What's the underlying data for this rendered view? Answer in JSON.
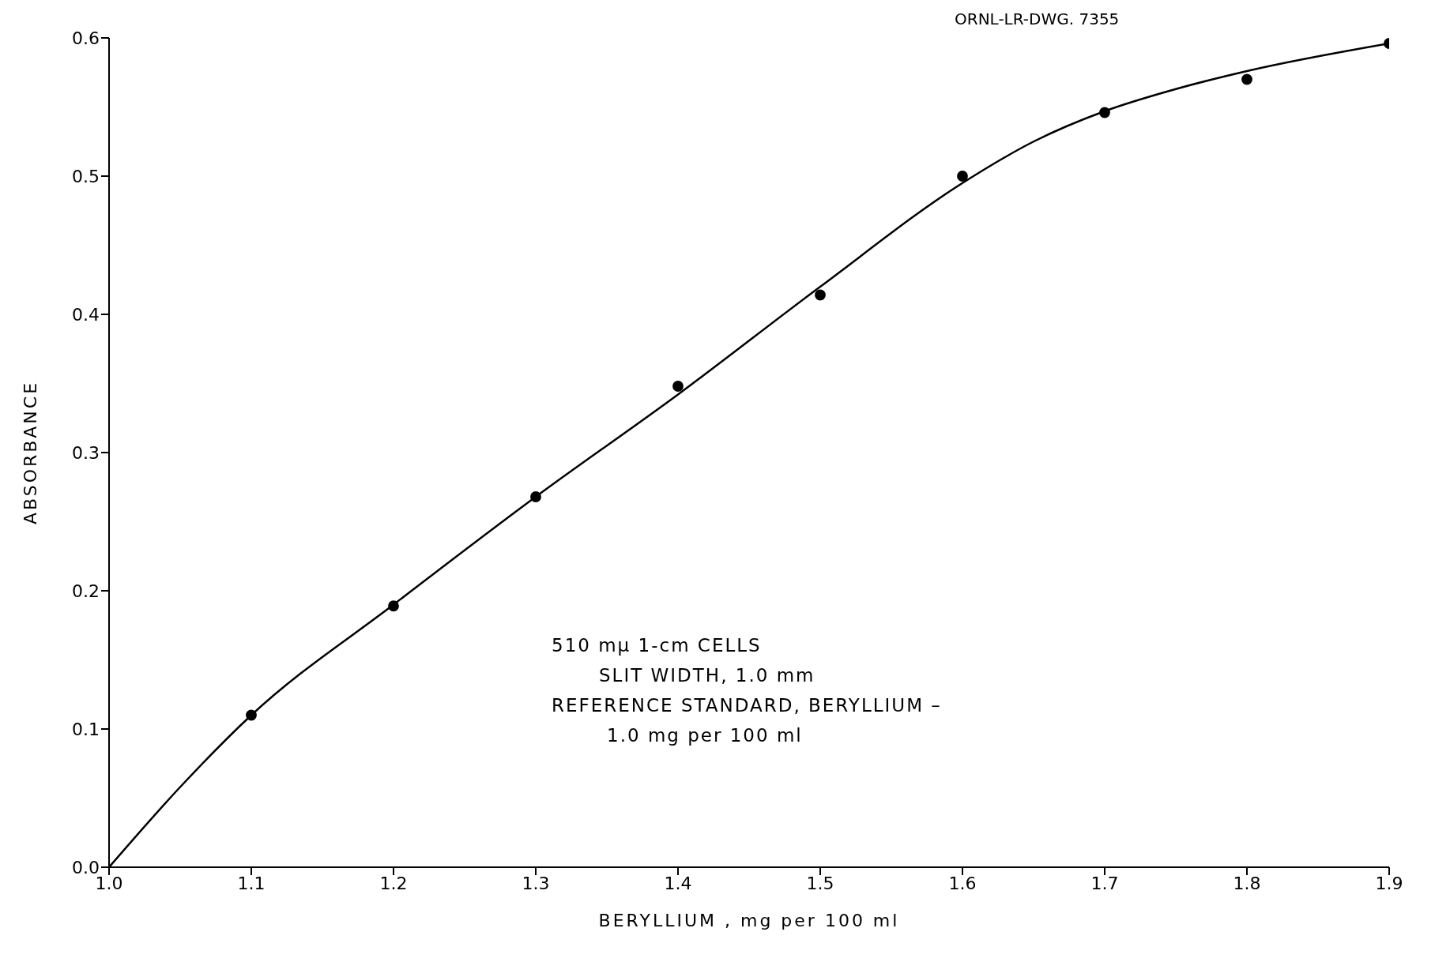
{
  "chart_data": {
    "type": "scatter",
    "xlabel": "BERYLLIUM , mg per 100 ml",
    "ylabel": "ABSORBANCE",
    "annotations": [
      "ORNL-LR-DWG. 7355",
      "510 mμ 1-cm CELLS",
      "SLIT  WIDTH, 1.0 mm",
      "REFERENCE  STANDARD, BERYLLIUM –",
      "1.0 mg per 100 ml"
    ],
    "xlim": [
      1.0,
      1.9
    ],
    "ylim": [
      0,
      0.6
    ],
    "xticks": [
      {
        "value": 1.0,
        "label": "1.0"
      },
      {
        "value": 1.1,
        "label": "1.1"
      },
      {
        "value": 1.2,
        "label": "1.2"
      },
      {
        "value": 1.3,
        "label": "1.3"
      },
      {
        "value": 1.4,
        "label": "1.4"
      },
      {
        "value": 1.5,
        "label": "1.5"
      },
      {
        "value": 1.6,
        "label": "1.6"
      },
      {
        "value": 1.7,
        "label": "1.7"
      },
      {
        "value": 1.8,
        "label": "1.8"
      },
      {
        "value": 1.9,
        "label": "1.9"
      }
    ],
    "yticks": [
      {
        "value": 0,
        "label": "0.0"
      },
      {
        "value": 0.1,
        "label": "0.1"
      },
      {
        "value": 0.2,
        "label": "0.2"
      },
      {
        "value": 0.3,
        "label": "0.3"
      },
      {
        "value": 0.4,
        "label": "0.4"
      },
      {
        "value": 0.5,
        "label": "0.5"
      },
      {
        "value": 0.6,
        "label": "0.6"
      }
    ],
    "grid": false,
    "legend": false,
    "series": [
      {
        "color": "#000000",
        "marker": "circle",
        "x": [
          1.1,
          1.2,
          1.3,
          1.4,
          1.5,
          1.6,
          1.7,
          1.8,
          1.9
        ],
        "values": [
          0.11,
          0.189,
          0.268,
          0.348,
          0.414,
          0.5,
          0.546,
          0.57,
          0.596
        ]
      },
      {
        "type": "line",
        "color": "#000000",
        "marker": "none",
        "line_style": "solid",
        "x": [
          1.0,
          1.05,
          1.1,
          1.2,
          1.3,
          1.4,
          1.5,
          1.6,
          1.65,
          1.7,
          1.75,
          1.8,
          1.9
        ],
        "values": [
          0,
          0.058,
          0.11,
          0.19,
          0.268,
          0.342,
          0.42,
          0.495,
          0.525,
          0.547,
          0.563,
          0.576,
          0.596
        ]
      }
    ]
  }
}
